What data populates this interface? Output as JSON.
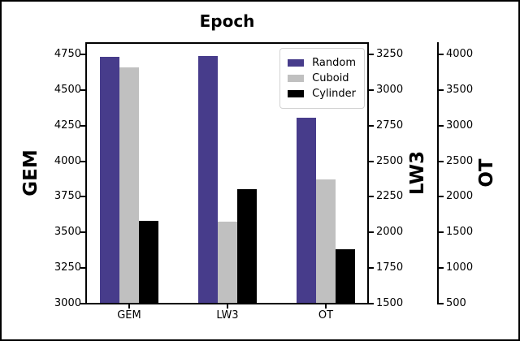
{
  "chart_data": {
    "type": "bar",
    "title": "Epoch",
    "categories": [
      "GEM",
      "LW3",
      "OT"
    ],
    "series": [
      {
        "name": "Random",
        "color": "#473c8b",
        "values": [
          4730,
          3240,
          3110
        ]
      },
      {
        "name": "Cuboid",
        "color": "#c0c0c0",
        "values": [
          4660,
          2070,
          2240
        ]
      },
      {
        "name": "Cylinder",
        "color": "#000000",
        "values": [
          3580,
          2300,
          1250
        ]
      }
    ],
    "axes": [
      {
        "label": "GEM",
        "side": "left",
        "range": [
          3000,
          4824
        ],
        "ticks": [
          3000,
          3250,
          3500,
          3750,
          4000,
          4250,
          4500,
          4750
        ],
        "applies_to_category": "GEM"
      },
      {
        "label": "LW3",
        "side": "right",
        "range": [
          1500,
          3324
        ],
        "ticks": [
          1500,
          1750,
          2000,
          2250,
          2500,
          2750,
          3000,
          3250
        ],
        "applies_to_category": "LW3"
      },
      {
        "label": "OT",
        "side": "right-outer",
        "range": [
          500,
          4148
        ],
        "ticks": [
          500,
          1000,
          1500,
          2000,
          2500,
          3000,
          3500,
          4000
        ],
        "applies_to_category": "OT"
      }
    ],
    "legend": {
      "position": "upper right",
      "entries": [
        "Random",
        "Cuboid",
        "Cylinder"
      ]
    },
    "grid": false,
    "note_each_category_group_uses_same_named_axis": true
  }
}
